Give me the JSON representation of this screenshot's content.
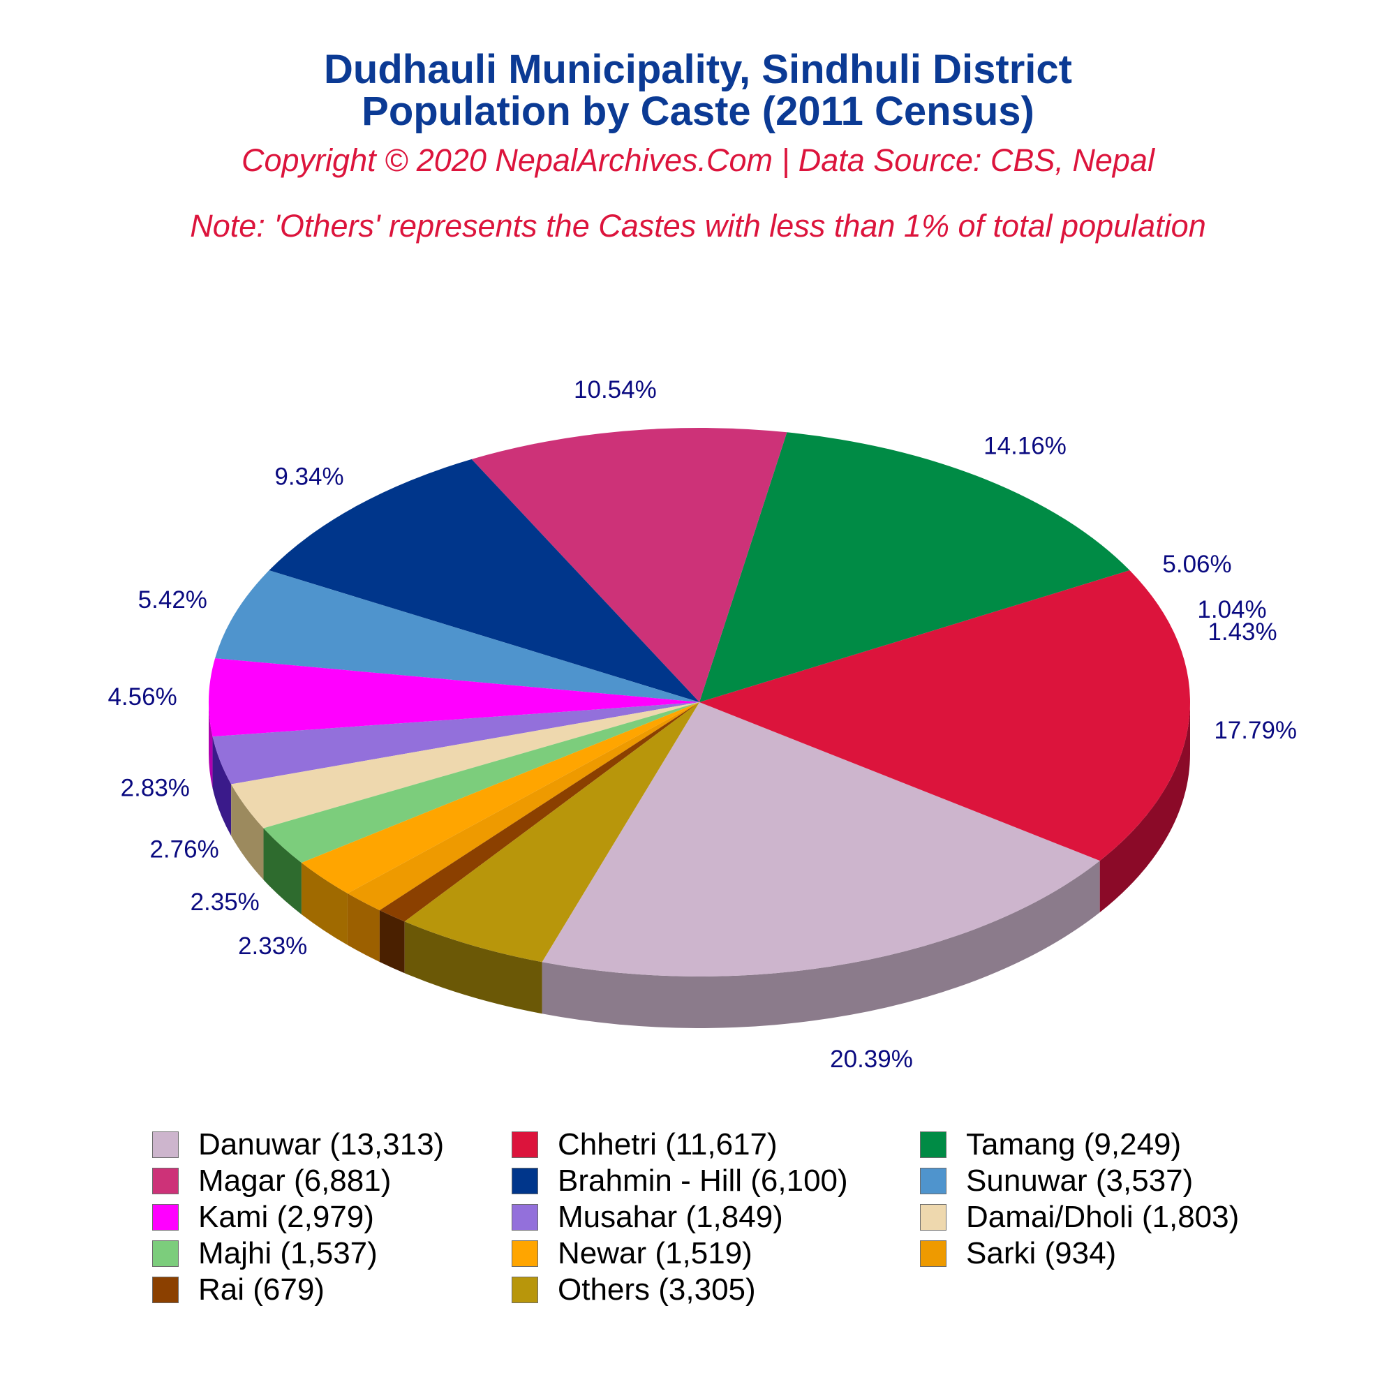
{
  "title_line1": "Dudhauli Municipality, Sindhuli District",
  "title_line2": "Population by Caste (2011 Census)",
  "copyright": "Copyright © 2020 NepalArchives.Com | Data Source: CBS, Nepal",
  "note": "Note: 'Others' represents the Castes with less than 1% of total population",
  "chart_data": {
    "type": "pie",
    "three_d": true,
    "legend_position": "bottom",
    "categories": [
      "Danuwar",
      "Chhetri",
      "Tamang",
      "Magar",
      "Brahmin - Hill",
      "Sunuwar",
      "Kami",
      "Musahar",
      "Damai/Dholi",
      "Majhi",
      "Newar",
      "Sarki",
      "Rai",
      "Others"
    ],
    "values": [
      13313,
      11617,
      9249,
      6881,
      6100,
      3537,
      2979,
      1849,
      1803,
      1537,
      1519,
      934,
      679,
      3305
    ],
    "percent_labels": [
      "20.39%",
      "17.79%",
      "14.16%",
      "10.54%",
      "9.34%",
      "5.42%",
      "4.56%",
      "2.83%",
      "2.76%",
      "2.35%",
      "2.33%",
      "1.43%",
      "1.04%",
      "5.06%"
    ],
    "legend_labels": [
      "Danuwar (13,313)",
      "Chhetri (11,617)",
      "Tamang (9,249)",
      "Magar (6,881)",
      "Brahmin - Hill (6,100)",
      "Sunuwar (3,537)",
      "Kami (2,979)",
      "Musahar (1,849)",
      "Damai/Dholi (1,803)",
      "Majhi (1,537)",
      "Newar (1,519)",
      "Sarki (934)",
      "Rai (679)",
      "Others (3,305)"
    ],
    "colors": [
      "#cdb5cd",
      "#dc143c",
      "#008b45",
      "#cd3278",
      "#00368b",
      "#4f94cd",
      "#ff00ff",
      "#9370db",
      "#eed8ae",
      "#7ccd7c",
      "#ffa500",
      "#ee9a00",
      "#8b4000",
      "#b8960b"
    ],
    "side_colors": [
      "#8b7b8b",
      "#8b0a28",
      "#003200",
      "#730020",
      "#000035",
      "#00386b",
      "#b000b0",
      "#3a1a8a",
      "#9c8a5e",
      "#2e6b2e",
      "#a06a00",
      "#9c6000",
      "#4a2000",
      "#6b5806"
    ]
  }
}
